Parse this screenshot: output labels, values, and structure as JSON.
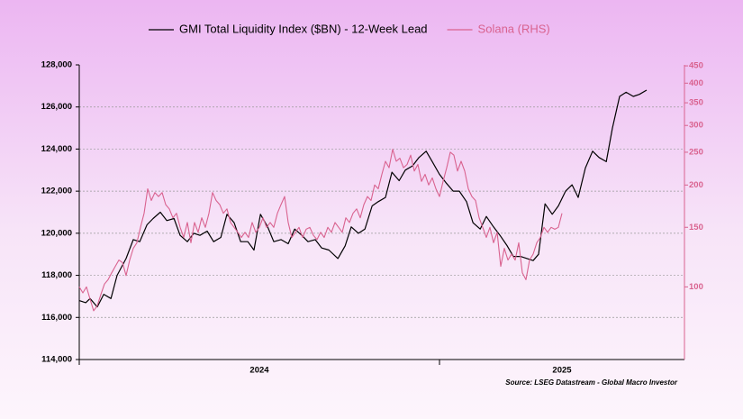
{
  "chart_data": {
    "type": "line",
    "source": "Source: LSEG Datastream - Global Macro Investor",
    "xlim": [
      2024,
      2025.68
    ],
    "xticks": [
      {
        "value": 2024,
        "label": "2024"
      },
      {
        "value": 2025,
        "label": "2025"
      }
    ],
    "ylim": [
      114000,
      128000
    ],
    "yticks": [
      {
        "value": 114000,
        "label": "114,000"
      },
      {
        "value": 116000,
        "label": "116,000"
      },
      {
        "value": 118000,
        "label": "118,000"
      },
      {
        "value": 120000,
        "label": "120,000"
      },
      {
        "value": 122000,
        "label": "122,000"
      },
      {
        "value": 124000,
        "label": "124,000"
      },
      {
        "value": 126000,
        "label": "126,000"
      },
      {
        "value": 128000,
        "label": "128,000"
      }
    ],
    "y2lim": [
      61,
      453
    ],
    "y2ticks": [
      100,
      150,
      200,
      250,
      300,
      350,
      400,
      450
    ],
    "y2log": true,
    "grid": true,
    "legend": "top",
    "series": [
      {
        "name": "GMI Total Liquidity Index ($BN) - 12-Week Lead",
        "color": "#000000",
        "axis": "y",
        "x": [
          2024.0,
          2024.018,
          2024.03,
          2024.05,
          2024.068,
          2024.088,
          2024.105,
          2024.13,
          2024.15,
          2024.168,
          2024.188,
          2024.205,
          2024.225,
          2024.243,
          2024.263,
          2024.28,
          2024.3,
          2024.318,
          2024.335,
          2024.355,
          2024.373,
          2024.393,
          2024.41,
          2024.43,
          2024.448,
          2024.468,
          2024.485,
          2024.503,
          2024.523,
          2024.54,
          2024.56,
          2024.58,
          2024.598,
          2024.618,
          2024.635,
          2024.655,
          2024.673,
          2024.693,
          2024.718,
          2024.738,
          2024.755,
          2024.775,
          2024.793,
          2024.813,
          2024.83,
          2024.85,
          2024.868,
          2024.888,
          2024.905,
          2024.925,
          2024.943,
          2024.963,
          2024.98,
          2025.0,
          2025.018,
          2025.038,
          2025.055,
          2025.075,
          2025.093,
          2025.113,
          2025.13,
          2025.15,
          2025.168,
          2025.188,
          2025.205,
          2025.225,
          2025.243,
          2025.26,
          2025.275,
          2025.293,
          2025.313,
          2025.33,
          2025.35,
          2025.368,
          2025.385,
          2025.405,
          2025.425,
          2025.443,
          2025.463,
          2025.48,
          2025.5,
          2025.518,
          2025.538,
          2025.555,
          2025.575
        ],
        "values": [
          116800,
          116700,
          116900,
          116500,
          117100,
          116900,
          118000,
          118800,
          119700,
          119600,
          120400,
          120700,
          121000,
          120600,
          120700,
          119900,
          119600,
          120000,
          119900,
          120100,
          119600,
          119800,
          120900,
          120500,
          119600,
          119600,
          119200,
          120900,
          120300,
          119600,
          119700,
          119500,
          120200,
          119900,
          119600,
          119700,
          119300,
          119200,
          118800,
          119400,
          120300,
          120000,
          120200,
          121300,
          121500,
          121700,
          122900,
          122500,
          123000,
          123200,
          123600,
          123900,
          123400,
          122800,
          122400,
          122000,
          122000,
          121500,
          120500,
          120200,
          120800,
          120300,
          119900,
          119400,
          118900,
          118900,
          118800,
          118700,
          119000,
          121400,
          120900,
          121300,
          122000,
          122300,
          121700,
          123100,
          123900,
          123600,
          123400,
          125000,
          126500,
          126700,
          126500,
          126600,
          126800
        ]
      },
      {
        "name": "Solana (RHS)",
        "color": "#d9628f",
        "axis": "y2",
        "x": [
          2024,
          2024.01,
          2024.02,
          2024.03,
          2024.04,
          2024.05,
          2024.06,
          2024.07,
          2024.08,
          2024.09,
          2024.1,
          2024.11,
          2024.12,
          2024.13,
          2024.14,
          2024.15,
          2024.16,
          2024.17,
          2024.18,
          2024.19,
          2024.2,
          2024.21,
          2024.22,
          2024.23,
          2024.24,
          2024.25,
          2024.26,
          2024.27,
          2024.28,
          2024.29,
          2024.3,
          2024.31,
          2024.32,
          2024.33,
          2024.34,
          2024.35,
          2024.36,
          2024.37,
          2024.38,
          2024.39,
          2024.4,
          2024.41,
          2024.42,
          2024.43,
          2024.44,
          2024.45,
          2024.46,
          2024.47,
          2024.48,
          2024.49,
          2024.5,
          2024.51,
          2024.52,
          2024.53,
          2024.54,
          2024.55,
          2024.56,
          2024.57,
          2024.58,
          2024.59,
          2024.6,
          2024.61,
          2024.62,
          2024.63,
          2024.64,
          2024.65,
          2024.66,
          2024.67,
          2024.68,
          2024.69,
          2024.7,
          2024.71,
          2024.72,
          2024.73,
          2024.74,
          2024.75,
          2024.76,
          2024.77,
          2024.78,
          2024.79,
          2024.8,
          2024.81,
          2024.82,
          2024.83,
          2024.84,
          2024.85,
          2024.86,
          2024.87,
          2024.88,
          2024.89,
          2024.9,
          2024.91,
          2024.92,
          2024.93,
          2024.94,
          2024.95,
          2024.96,
          2024.97,
          2024.98,
          2024.99,
          2025,
          2025.01,
          2025.02,
          2025.03,
          2025.04,
          2025.05,
          2025.06,
          2025.07,
          2025.08,
          2025.09,
          2025.1,
          2025.11,
          2025.12,
          2025.13,
          2025.14,
          2025.15,
          2025.16,
          2025.17,
          2025.18,
          2025.19,
          2025.2,
          2025.21,
          2025.22,
          2025.23,
          2025.24,
          2025.25,
          2025.26,
          2025.27,
          2025.28,
          2025.29,
          2025.3,
          2025.31,
          2025.32,
          2025.33,
          2025.34
        ],
        "values": [
          100,
          96,
          100,
          92,
          85,
          88,
          95,
          102,
          105,
          110,
          115,
          120,
          118,
          108,
          120,
          130,
          135,
          150,
          165,
          195,
          180,
          190,
          185,
          190,
          175,
          170,
          160,
          165,
          150,
          140,
          155,
          135,
          155,
          145,
          160,
          150,
          165,
          190,
          180,
          175,
          165,
          170,
          155,
          150,
          145,
          140,
          145,
          140,
          155,
          145,
          150,
          160,
          150,
          155,
          150,
          165,
          175,
          185,
          155,
          140,
          145,
          150,
          140,
          148,
          150,
          142,
          138,
          145,
          140,
          150,
          145,
          155,
          150,
          145,
          160,
          155,
          165,
          170,
          160,
          175,
          185,
          180,
          200,
          195,
          215,
          235,
          225,
          255,
          235,
          240,
          225,
          230,
          245,
          220,
          230,
          205,
          215,
          200,
          210,
          195,
          185,
          205,
          225,
          250,
          245,
          220,
          235,
          220,
          195,
          185,
          180,
          160,
          150,
          140,
          150,
          135,
          145,
          115,
          130,
          120,
          125,
          120,
          135,
          110,
          105,
          120,
          125,
          135,
          140,
          150,
          145,
          150,
          148,
          150,
          165
        ]
      }
    ]
  }
}
